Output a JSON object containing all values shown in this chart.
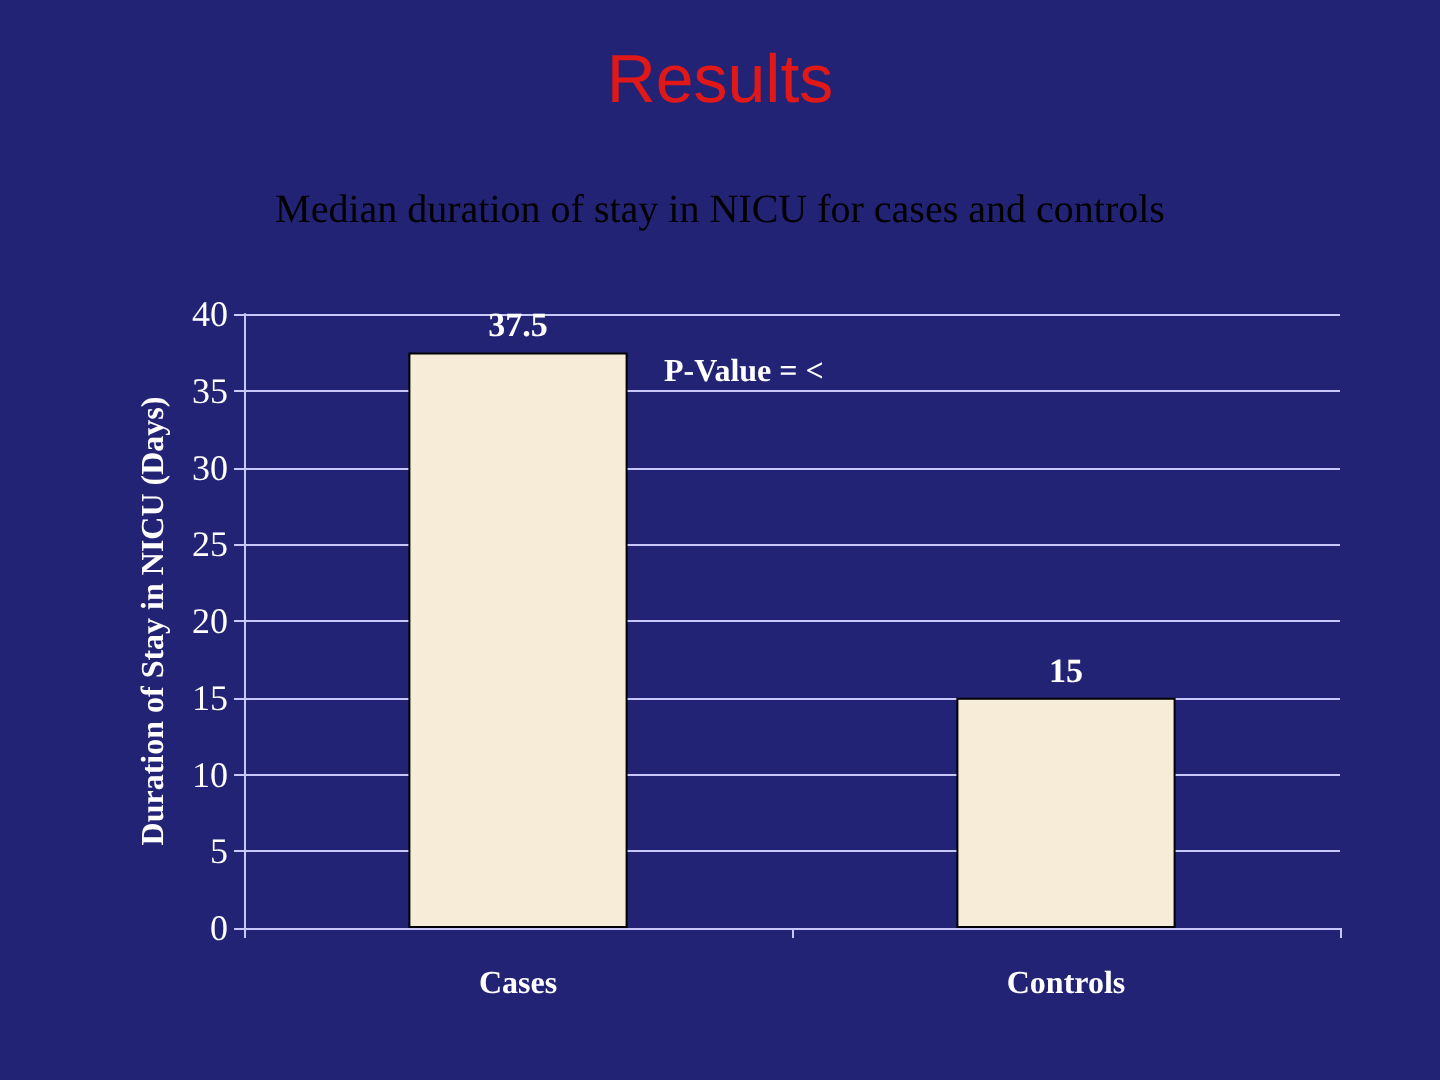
{
  "chart_data": {
    "type": "bar",
    "title": "Results",
    "subtitle": "Median duration of stay in NICU for cases and controls",
    "ylabel": "Duration of Stay in NICU (Days)",
    "categories": [
      "Cases",
      "Controls"
    ],
    "values": [
      37.5,
      15
    ],
    "color": "#f6ecd8",
    "ylim": [
      0,
      40
    ],
    "yticks": [
      0,
      5,
      10,
      15,
      20,
      25,
      30,
      35,
      40
    ],
    "grid": "y",
    "data_labels": true,
    "annotations": [
      "P-Value = <"
    ]
  }
}
